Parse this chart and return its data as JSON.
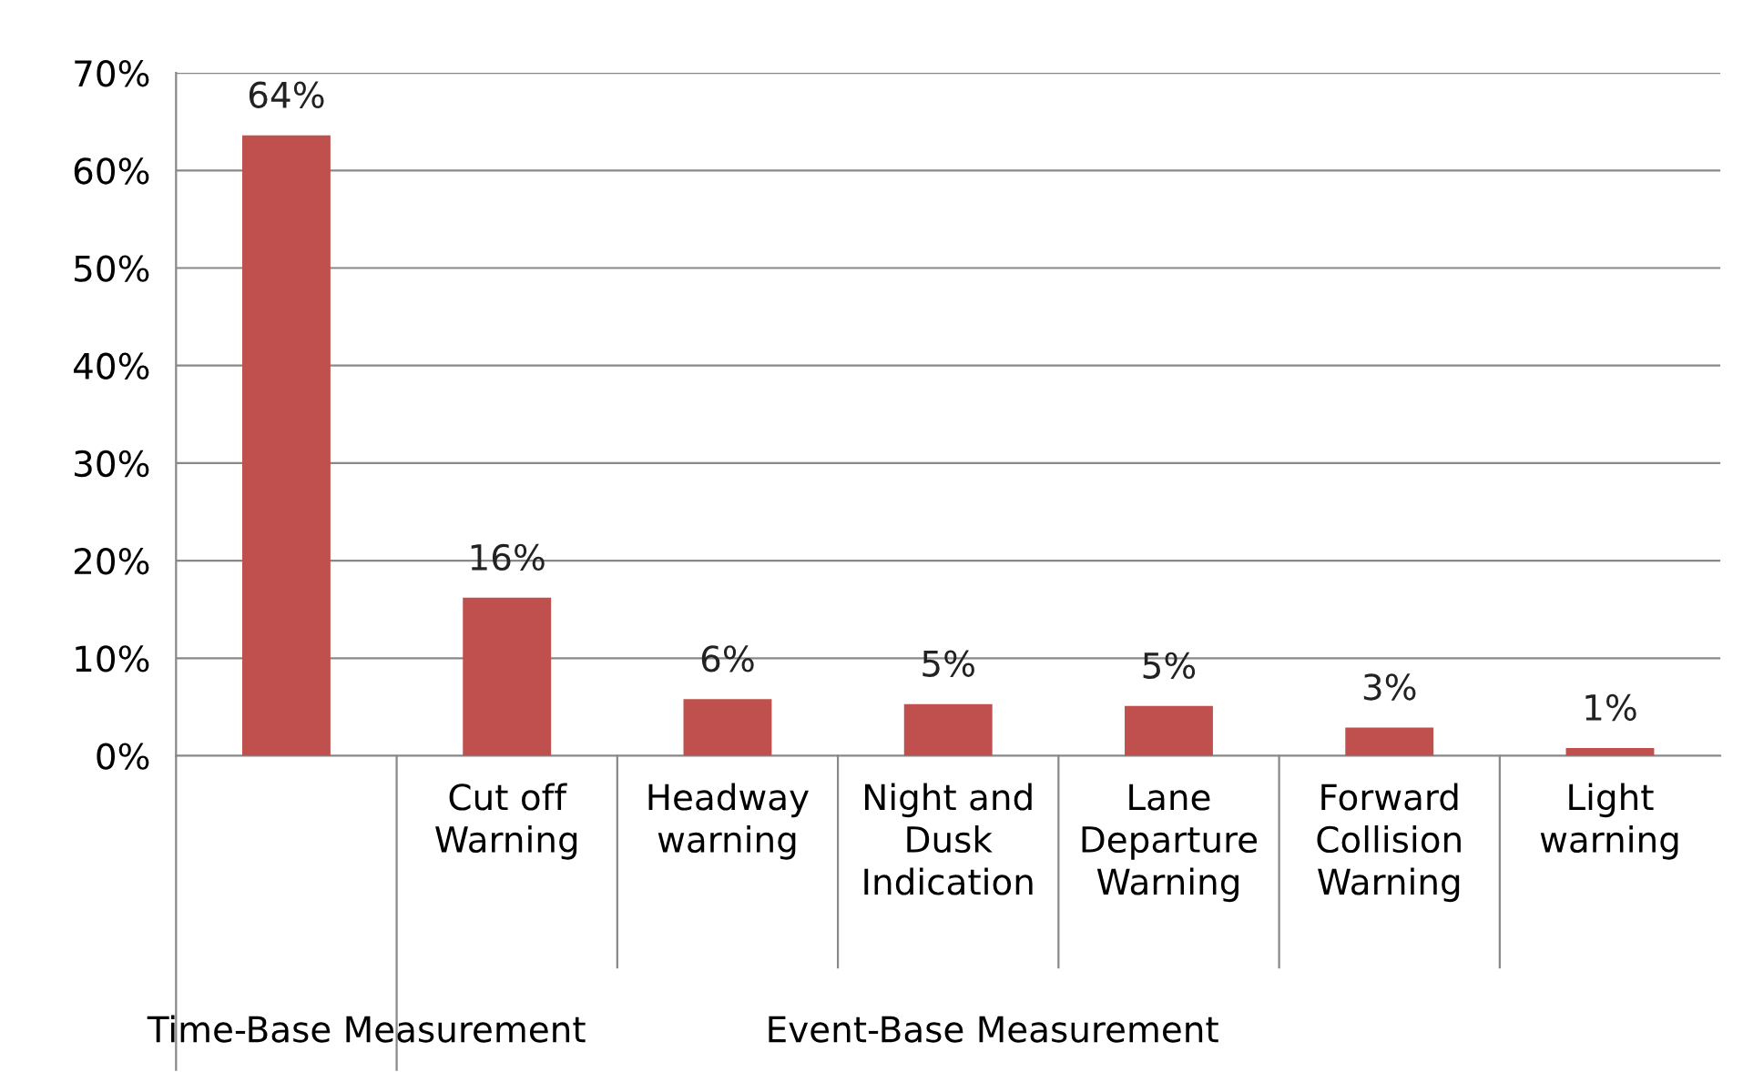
{
  "chart_data": {
    "type": "bar",
    "categories": [
      null,
      "Cut off\nWarning",
      "Headway\nwarning",
      "Night and\nDusk\nIndication",
      "Lane\nDeparture\nWarning",
      "Forward\nCollision\nWarning",
      "Light\nwarning"
    ],
    "values": [
      63.6,
      16.2,
      5.8,
      5.3,
      5.1,
      2.9,
      0.8
    ],
    "value_labels": [
      "64%",
      "16%",
      "6%",
      "5%",
      "5%",
      "3%",
      "1%"
    ],
    "color": "#c0504d",
    "ylim": [
      0,
      70
    ],
    "yticks": [
      {
        "value": 0,
        "label": "0%"
      },
      {
        "value": 10,
        "label": "10%"
      },
      {
        "value": 20,
        "label": "20%"
      },
      {
        "value": 30,
        "label": "30%"
      },
      {
        "value": 40,
        "label": "40%"
      },
      {
        "value": 50,
        "label": "50%"
      },
      {
        "value": 60,
        "label": "60%"
      },
      {
        "value": 70,
        "label": "70%"
      }
    ],
    "grid": "y",
    "annotations": [
      "Time-Base Measurement",
      "Event-Base Measurement"
    ]
  }
}
